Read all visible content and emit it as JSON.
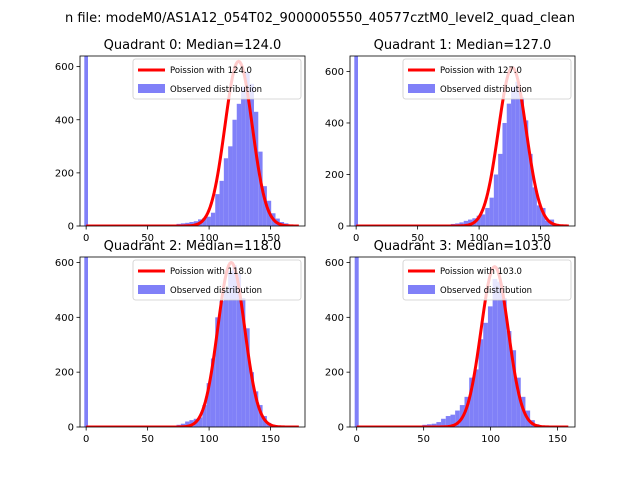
{
  "figure": {
    "title": "n file: modeM0/AS1A12_054T02_9000005550_40577cztM0_level2_quad_clean"
  },
  "colors": {
    "bars": "#8080f8",
    "poisson": "#ff0000",
    "spike": "#8080f8"
  },
  "chart_data": [
    {
      "type": "bar",
      "title": "Quadrant 0: Median=124.0",
      "legend": {
        "line": "Poission with 124.0",
        "bars": "Observed distribution",
        "position": "upper right"
      },
      "xlim": [
        -5,
        178
      ],
      "ylim": [
        0,
        640
      ],
      "xticks": [
        0,
        50,
        100,
        150
      ],
      "xtick_labels": [
        "0",
        "50",
        "100",
        "150"
      ],
      "yticks": [
        0,
        200,
        400,
        600
      ],
      "ytick_labels": [
        "0",
        "200",
        "400",
        "600"
      ],
      "spike": {
        "x": 0,
        "value": 640
      },
      "bin_width": 3.5,
      "histogram": {
        "x": [
          70,
          73.5,
          77,
          80.5,
          84,
          87.5,
          91,
          94.5,
          98,
          101.5,
          105,
          108.5,
          112,
          115.5,
          119,
          122.5,
          126,
          129.5,
          133,
          136.5,
          140,
          143.5,
          147,
          150.5,
          154,
          157.5,
          161,
          164.5,
          168
        ],
        "counts": [
          5,
          8,
          10,
          12,
          15,
          18,
          25,
          30,
          35,
          50,
          120,
          170,
          255,
          300,
          400,
          460,
          525,
          580,
          535,
          430,
          280,
          150,
          95,
          48,
          28,
          15,
          10,
          5,
          2
        ]
      },
      "poisson": {
        "mean": 124.0,
        "peak": 620
      }
    },
    {
      "type": "bar",
      "title": "Quadrant 1: Median=127.0",
      "legend": {
        "line": "Poission with 127.0",
        "bars": "Observed distribution",
        "position": "upper right"
      },
      "xlim": [
        -5,
        178
      ],
      "ylim": [
        0,
        660
      ],
      "xticks": [
        0,
        50,
        100,
        150
      ],
      "xtick_labels": [
        "0",
        "50",
        "100",
        "150"
      ],
      "yticks": [
        0,
        200,
        400,
        600
      ],
      "ytick_labels": [
        "0",
        "200",
        "400",
        "600"
      ],
      "spike": {
        "x": 0,
        "value": 660
      },
      "bin_width": 3.5,
      "histogram": {
        "x": [
          70,
          73.5,
          77,
          80.5,
          84,
          87.5,
          91,
          94.5,
          98,
          101.5,
          105,
          108.5,
          112,
          115.5,
          119,
          122.5,
          126,
          129.5,
          133,
          136.5,
          140,
          143.5,
          147,
          150.5,
          154,
          157.5,
          161,
          164.5,
          168
        ],
        "counts": [
          2,
          5,
          8,
          10,
          14,
          20,
          25,
          30,
          40,
          45,
          70,
          110,
          200,
          280,
          400,
          475,
          540,
          560,
          500,
          410,
          280,
          150,
          80,
          70,
          20,
          25,
          8,
          5,
          2
        ]
      },
      "poisson": {
        "mean": 127.0,
        "peak": 615
      }
    },
    {
      "type": "bar",
      "title": "Quadrant 2: Median=118.0",
      "legend": {
        "line": "Poission with 118.0",
        "bars": "Observed distribution",
        "position": "upper right"
      },
      "xlim": [
        -5,
        178
      ],
      "ylim": [
        0,
        620
      ],
      "xticks": [
        0,
        50,
        100,
        150
      ],
      "xtick_labels": [
        "0",
        "50",
        "100",
        "150"
      ],
      "yticks": [
        0,
        200,
        400,
        600
      ],
      "ytick_labels": [
        "0",
        "200",
        "400",
        "600"
      ],
      "spike": {
        "x": 0,
        "value": 620
      },
      "bin_width": 3.5,
      "histogram": {
        "x": [
          66.5,
          70,
          73.5,
          77,
          80.5,
          84,
          87.5,
          91,
          94.5,
          98,
          101.5,
          105,
          108.5,
          112,
          115.5,
          119,
          122.5,
          126,
          129.5,
          133,
          136.5,
          140,
          143.5,
          147,
          150.5,
          154
        ],
        "counts": [
          2,
          5,
          8,
          12,
          20,
          25,
          30,
          35,
          80,
          160,
          250,
          400,
          460,
          500,
          570,
          590,
          560,
          470,
          360,
          200,
          130,
          80,
          40,
          15,
          8,
          3
        ]
      },
      "poisson": {
        "mean": 118.0,
        "peak": 600
      }
    },
    {
      "type": "bar",
      "title": "Quadrant 3: Median=103.0",
      "legend": {
        "line": "Poission with 103.0",
        "bars": "Observed distribution",
        "position": "upper right"
      },
      "xlim": [
        -5,
        163
      ],
      "ylim": [
        0,
        620
      ],
      "xticks": [
        0,
        50,
        100,
        150
      ],
      "xtick_labels": [
        "0",
        "50",
        "100",
        "150"
      ],
      "yticks": [
        0,
        200,
        400,
        600
      ],
      "ytick_labels": [
        "0",
        "200",
        "400",
        "600"
      ],
      "spike": {
        "x": 0,
        "value": 620
      },
      "bin_width": 3.5,
      "histogram": {
        "x": [
          45.5,
          49,
          52.5,
          56,
          59.5,
          63,
          66.5,
          70,
          73.5,
          77,
          80.5,
          84,
          87.5,
          91,
          94.5,
          98,
          101.5,
          105,
          108.5,
          112,
          115.5,
          119,
          122.5,
          126,
          129.5,
          133,
          136.5
        ],
        "counts": [
          5,
          8,
          10,
          12,
          18,
          30,
          40,
          45,
          60,
          80,
          110,
          180,
          210,
          320,
          380,
          440,
          540,
          530,
          470,
          350,
          280,
          180,
          110,
          60,
          25,
          10,
          5
        ]
      },
      "poisson": {
        "mean": 103.0,
        "peak": 585
      }
    }
  ]
}
